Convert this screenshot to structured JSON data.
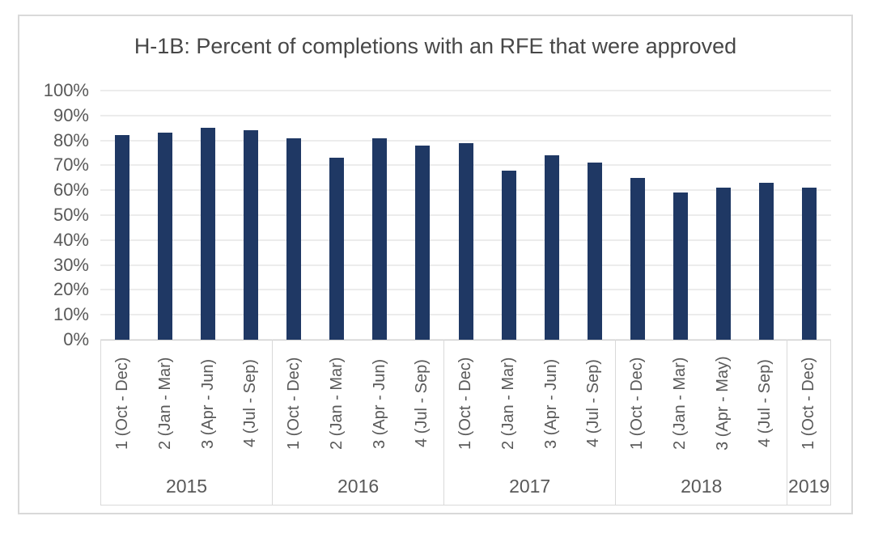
{
  "title": "H-1B: Percent of completions with an RFE that were approved",
  "colors": {
    "bar": "#1f3864",
    "gridline": "#d9d9d9",
    "axis_text": "#595959",
    "title_text": "#474747",
    "frame_border": "#d9d9d9"
  },
  "chart_data": {
    "type": "bar",
    "title": "H-1B: Percent of completions with an RFE that were approved",
    "xlabel": "",
    "ylabel": "",
    "ylim": [
      0,
      100
    ],
    "y_ticks": [
      100,
      90,
      80,
      70,
      60,
      50,
      40,
      30,
      20,
      10,
      0
    ],
    "y_tick_suffix": "%",
    "grid": true,
    "legend": false,
    "bar_color": "#1f3864",
    "groups": [
      {
        "year": "2015",
        "quarters": [
          "1 (Oct - Dec)",
          "2 (Jan - Mar)",
          "3 (Apr - Jun)",
          "4 (Jul - Sep)"
        ],
        "values": [
          82,
          83,
          85,
          84
        ]
      },
      {
        "year": "2016",
        "quarters": [
          "1 (Oct - Dec)",
          "2 (Jan - Mar)",
          "3 (Apr - Jun)",
          "4 (Jul - Sep)"
        ],
        "values": [
          81,
          73,
          81,
          78
        ]
      },
      {
        "year": "2017",
        "quarters": [
          "1 (Oct - Dec)",
          "2 (Jan - Mar)",
          "3 (Apr - Jun)",
          "4 (Jul - Sep)"
        ],
        "values": [
          79,
          68,
          74,
          71
        ]
      },
      {
        "year": "2018",
        "quarters": [
          "1 (Oct - Dec)",
          "2 (Jan - Mar)",
          "3 (Apr - May)",
          "4 (Jul - Sep)"
        ],
        "values": [
          65,
          59,
          61,
          63
        ]
      },
      {
        "year": "2019",
        "quarters": [
          "1 (Oct - Dec)"
        ],
        "values": [
          61
        ]
      }
    ]
  }
}
